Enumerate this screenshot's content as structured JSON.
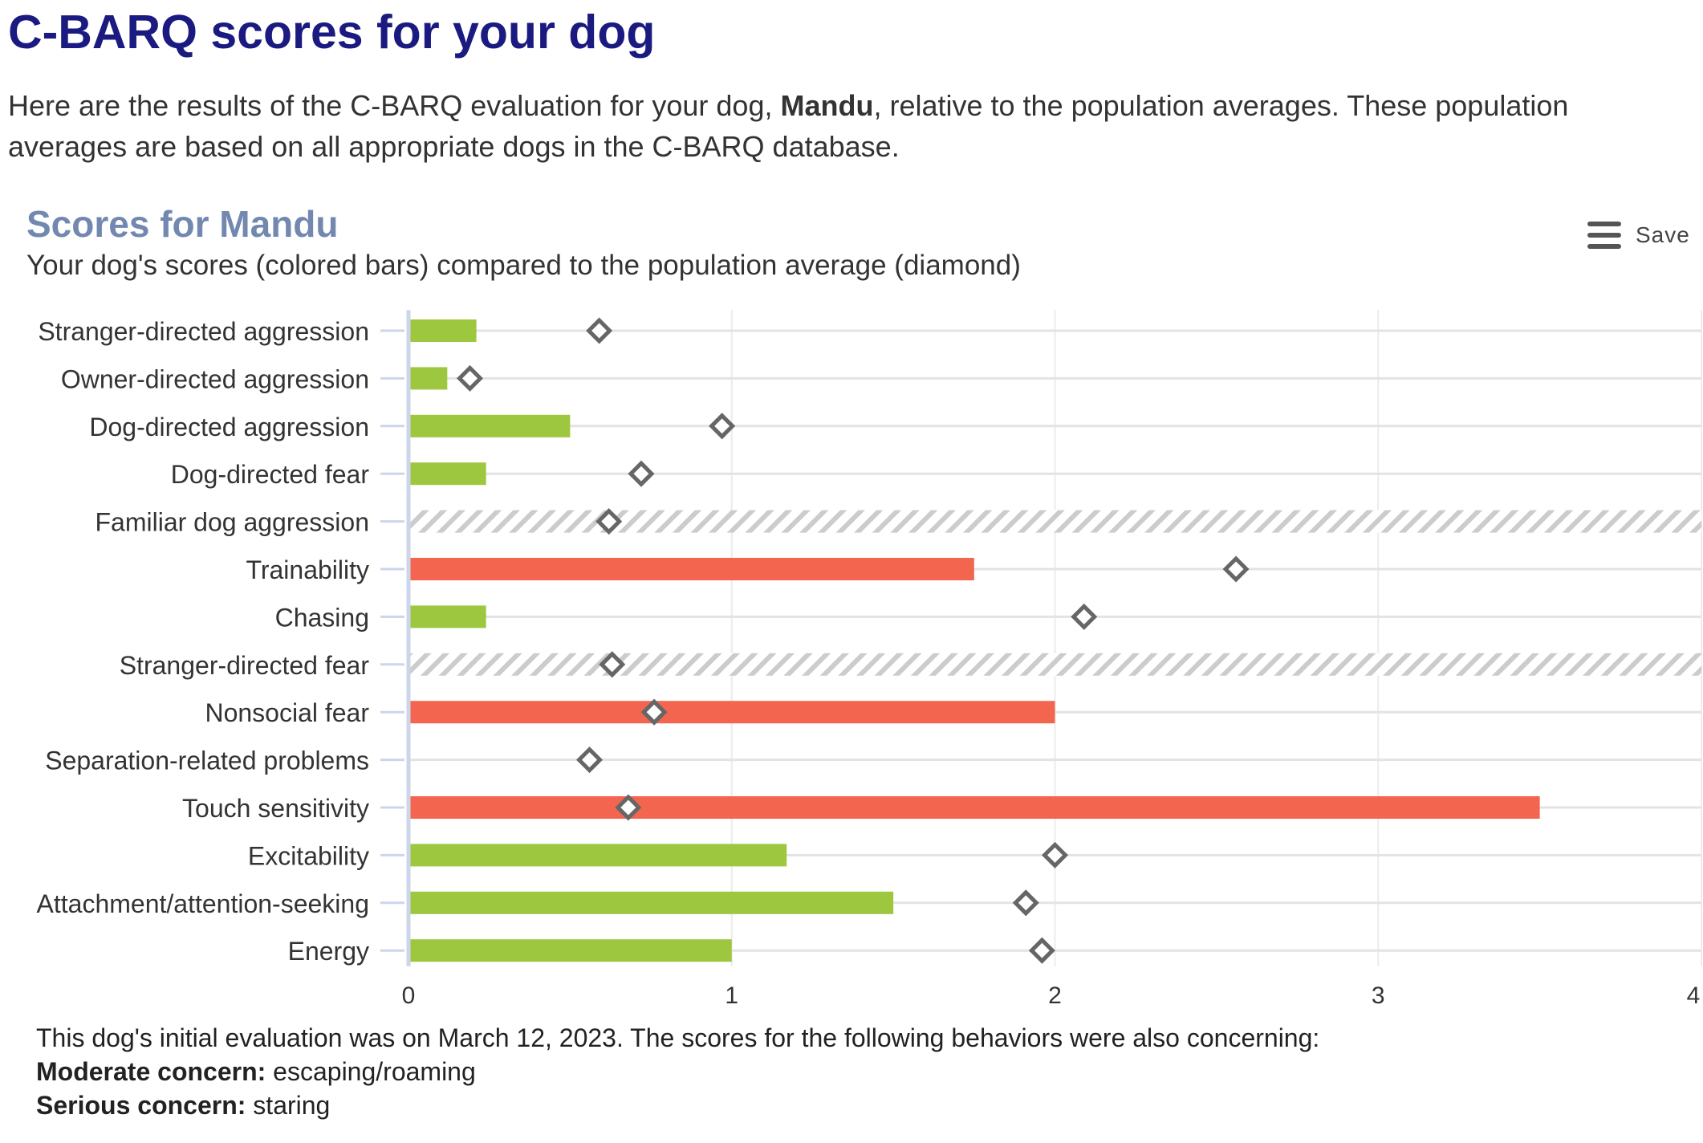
{
  "header": {
    "title": "C-BARQ scores for your dog",
    "intro_before": "Here are the results of the C-BARQ evaluation for your dog, ",
    "dog_name": "Mandu",
    "intro_after": ", relative to the population averages. These population averages are based on all appropriate dogs in the C-BARQ database."
  },
  "menu": {
    "label": "Save",
    "icon": "hamburger-menu-icon"
  },
  "footnote": {
    "line1": "This dog's initial evaluation was on March 12, 2023. The scores for the following behaviors were also concerning:",
    "moderate_label": "Moderate concern:",
    "moderate_value": "escaping/roaming",
    "serious_label": "Serious concern:",
    "serious_value": "staring"
  },
  "chart_data": {
    "type": "bar",
    "orientation": "horizontal",
    "title": "Scores for Mandu",
    "subtitle": "Your dog's scores (colored bars) compared to the population average (diamond)",
    "xlim": [
      0,
      4
    ],
    "xticks": [
      0,
      1,
      2,
      3,
      4
    ],
    "grid": true,
    "colors": {
      "normal": "#9dc73f",
      "concern": "#f4654f",
      "diamond": "#666666",
      "no_data_hatch": "#cccccc"
    },
    "categories": [
      "Stranger-directed aggression",
      "Owner-directed aggression",
      "Dog-directed aggression",
      "Dog-directed fear",
      "Familiar dog aggression",
      "Trainability",
      "Chasing",
      "Stranger-directed fear",
      "Nonsocial fear",
      "Separation-related problems",
      "Touch sensitivity",
      "Excitability",
      "Attachment/attention-seeking",
      "Energy"
    ],
    "series": [
      {
        "values": [
          0.21,
          0.12,
          0.5,
          0.24,
          null,
          1.75,
          0.24,
          null,
          2.0,
          0.0,
          3.5,
          1.17,
          1.5,
          1.0
        ],
        "status": [
          "normal",
          "normal",
          "normal",
          "normal",
          "none",
          "concern",
          "normal",
          "none",
          "concern",
          "normal",
          "concern",
          "normal",
          "normal",
          "normal"
        ]
      },
      {
        "values": [
          0.59,
          0.19,
          0.97,
          0.72,
          0.62,
          2.56,
          2.09,
          0.63,
          0.76,
          0.56,
          0.68,
          2.0,
          1.91,
          1.96
        ]
      }
    ]
  }
}
